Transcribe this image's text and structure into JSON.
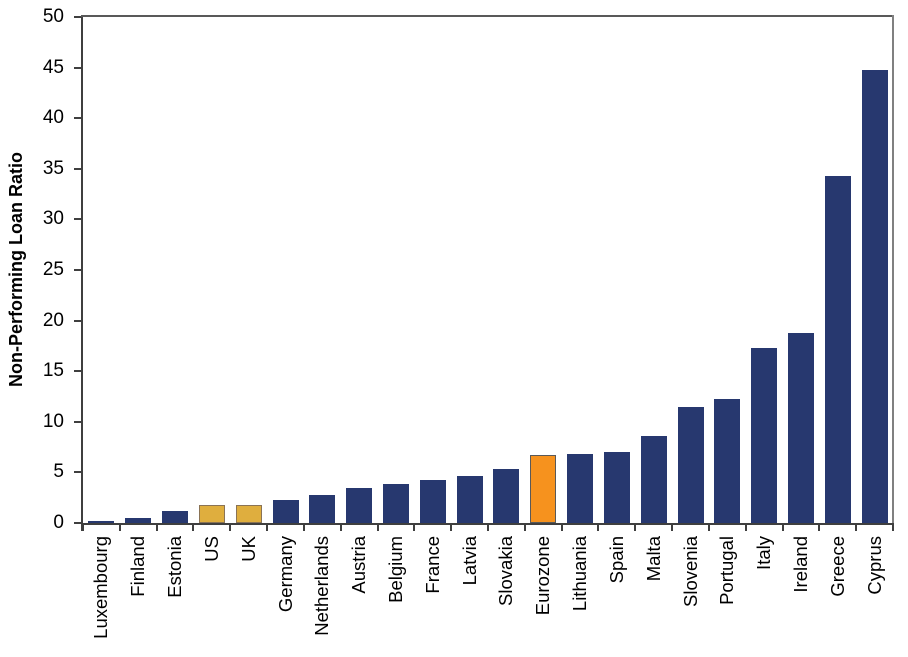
{
  "page": {
    "background": "#ffffff"
  },
  "chart_data": {
    "type": "bar",
    "title": "",
    "xlabel": "",
    "ylabel": "Non-Performing Loan Ratio",
    "ylim": [
      0,
      50
    ],
    "ytick_step": 5,
    "grid": false,
    "legend": "none",
    "categories": [
      "Luxembourg",
      "Finland",
      "Estonia",
      "US",
      "UK",
      "Germany",
      "Netherlands",
      "Austria",
      "Belgium",
      "France",
      "Latvia",
      "Slovakia",
      "Eurozone",
      "Lithuania",
      "Spain",
      "Malta",
      "Slovenia",
      "Portugal",
      "Italy",
      "Ireland",
      "Greece",
      "Cyprus"
    ],
    "values": [
      0.2,
      0.5,
      1.2,
      1.8,
      1.8,
      2.3,
      2.8,
      3.5,
      3.9,
      4.2,
      4.6,
      5.3,
      6.7,
      6.8,
      7.0,
      8.6,
      11.5,
      12.3,
      17.3,
      18.8,
      34.3,
      44.8
    ],
    "colors": {
      "bar_default": "#27386F",
      "axis_dark": "#3F3F3F",
      "axis_top": "#595959",
      "axis_right": "#808080",
      "text": "#000000"
    },
    "highlight": {
      "US": {
        "fill": "#DFAE3E",
        "border": "#8A7355"
      },
      "UK": {
        "fill": "#DFAE3E",
        "border": "#8A7355"
      },
      "Eurozone": {
        "fill": "#F6921E",
        "border": "#595959"
      }
    }
  }
}
